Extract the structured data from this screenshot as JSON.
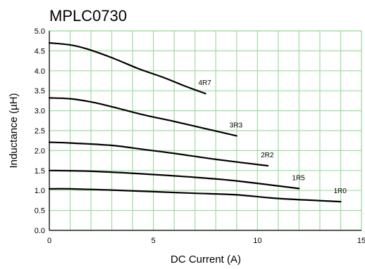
{
  "chart_data": {
    "type": "line",
    "title": "MPLC0730",
    "xlabel": "DC Current (A)",
    "ylabel": "Inductance (µH)",
    "xlim": [
      0,
      15
    ],
    "ylim": [
      0,
      5
    ],
    "x_ticks": [
      "0",
      "5",
      "10",
      "15"
    ],
    "y_ticks": [
      "0.0",
      "0.5",
      "1.0",
      "1.5",
      "2.0",
      "2.5",
      "3.0",
      "3.5",
      "4.0",
      "4.5",
      "5.0"
    ],
    "grid": true,
    "line_color": "#000000",
    "grid_color": "#9fdc9f",
    "series": [
      {
        "name": "4R7",
        "x": [
          0,
          1,
          1.8,
          3,
          4.3,
          5.5,
          6.5,
          7.5
        ],
        "y": [
          4.7,
          4.65,
          4.55,
          4.33,
          4.05,
          3.83,
          3.62,
          3.43
        ]
      },
      {
        "name": "3R3",
        "x": [
          0,
          1,
          2,
          3,
          4.5,
          6,
          7.5,
          9
        ],
        "y": [
          3.32,
          3.3,
          3.22,
          3.1,
          2.9,
          2.73,
          2.55,
          2.37
        ]
      },
      {
        "name": "2R2",
        "x": [
          0,
          1,
          3,
          4.5,
          6,
          8,
          10.5
        ],
        "y": [
          2.21,
          2.19,
          2.13,
          2.03,
          1.93,
          1.78,
          1.62
        ]
      },
      {
        "name": "1R5",
        "x": [
          0,
          1.5,
          3,
          5,
          7,
          9,
          12
        ],
        "y": [
          1.5,
          1.49,
          1.46,
          1.4,
          1.33,
          1.24,
          1.05
        ]
      },
      {
        "name": "1R0",
        "x": [
          0,
          1,
          3,
          5,
          7,
          9,
          11,
          14
        ],
        "y": [
          1.04,
          1.04,
          1.01,
          0.97,
          0.93,
          0.89,
          0.8,
          0.72
        ]
      }
    ]
  }
}
